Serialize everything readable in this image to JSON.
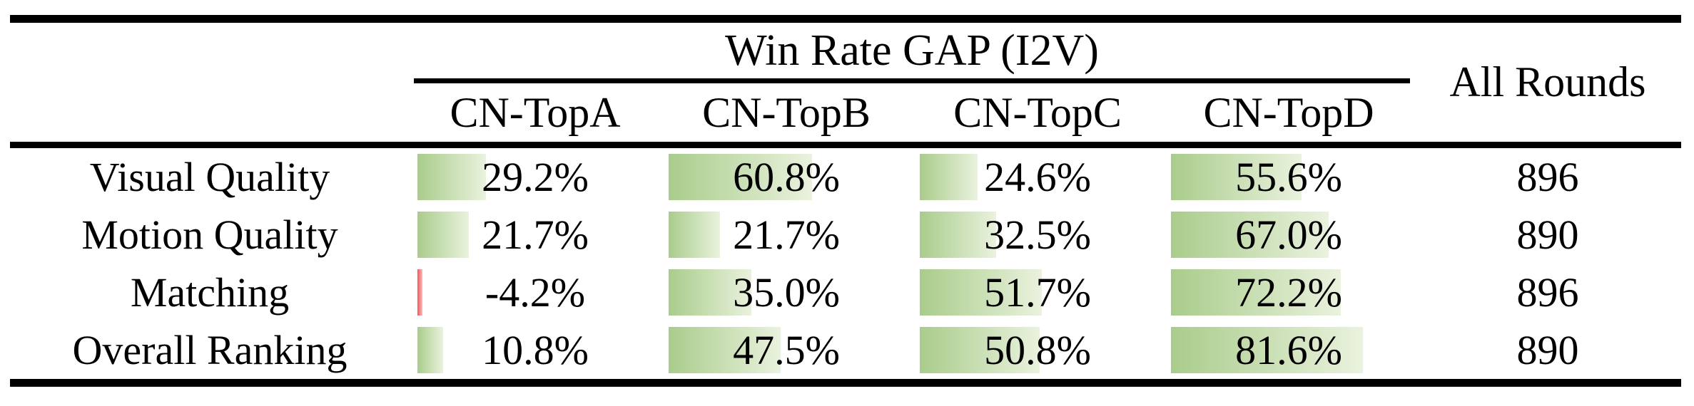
{
  "header": {
    "group_title": "Win Rate GAP (I2V)",
    "columns": [
      "CN-TopA",
      "CN-TopB",
      "CN-TopC",
      "CN-TopD"
    ],
    "all_rounds": "All Rounds"
  },
  "rows": [
    {
      "label": "Visual Quality",
      "cells": [
        {
          "text": "29.2%",
          "value": 29.2
        },
        {
          "text": "60.8%",
          "value": 60.8
        },
        {
          "text": "24.6%",
          "value": 24.6
        },
        {
          "text": "55.6%",
          "value": 55.6
        }
      ],
      "all_rounds": "896"
    },
    {
      "label": "Motion Quality",
      "cells": [
        {
          "text": "21.7%",
          "value": 21.7
        },
        {
          "text": "21.7%",
          "value": 21.7
        },
        {
          "text": "32.5%",
          "value": 32.5
        },
        {
          "text": "67.0%",
          "value": 67.0
        }
      ],
      "all_rounds": "890"
    },
    {
      "label": "Matching",
      "cells": [
        {
          "text": "-4.2%",
          "value": -4.2
        },
        {
          "text": "35.0%",
          "value": 35.0
        },
        {
          "text": "51.7%",
          "value": 51.7
        },
        {
          "text": "72.2%",
          "value": 72.2
        }
      ],
      "all_rounds": "896"
    },
    {
      "label": "Overall Ranking",
      "cells": [
        {
          "text": "10.8%",
          "value": 10.8
        },
        {
          "text": "47.5%",
          "value": 47.5
        },
        {
          "text": "50.8%",
          "value": 50.8
        },
        {
          "text": "81.6%",
          "value": 81.6
        }
      ],
      "all_rounds": "890"
    }
  ],
  "colors": {
    "bar_positive_start": "#a9cc8b",
    "bar_positive_end": "#eaf2de",
    "bar_negative_start": "#f55555",
    "bar_negative_end": "#fbbdbd",
    "rule": "#000000",
    "text": "#000000",
    "background": "#ffffff"
  },
  "chart_data": {
    "type": "table",
    "title": "Win Rate GAP (I2V)",
    "row_header": [
      "Visual Quality",
      "Motion Quality",
      "Matching",
      "Overall Ranking"
    ],
    "columns": [
      "CN-TopA",
      "CN-TopB",
      "CN-TopC",
      "CN-TopD",
      "All Rounds"
    ],
    "series": [
      {
        "name": "Visual Quality",
        "values": [
          29.2,
          60.8,
          24.6,
          55.6
        ],
        "all_rounds": 896
      },
      {
        "name": "Motion Quality",
        "values": [
          21.7,
          21.7,
          32.5,
          67.0
        ],
        "all_rounds": 890
      },
      {
        "name": "Matching",
        "values": [
          -4.2,
          35.0,
          51.7,
          72.2
        ],
        "all_rounds": 896
      },
      {
        "name": "Overall Ranking",
        "values": [
          10.8,
          47.5,
          50.8,
          81.6
        ],
        "all_rounds": 890
      }
    ],
    "value_unit": "%",
    "bar_scale": [
      0,
      100
    ],
    "notes": "in-cell gradient data bars, green positive, red negative"
  }
}
